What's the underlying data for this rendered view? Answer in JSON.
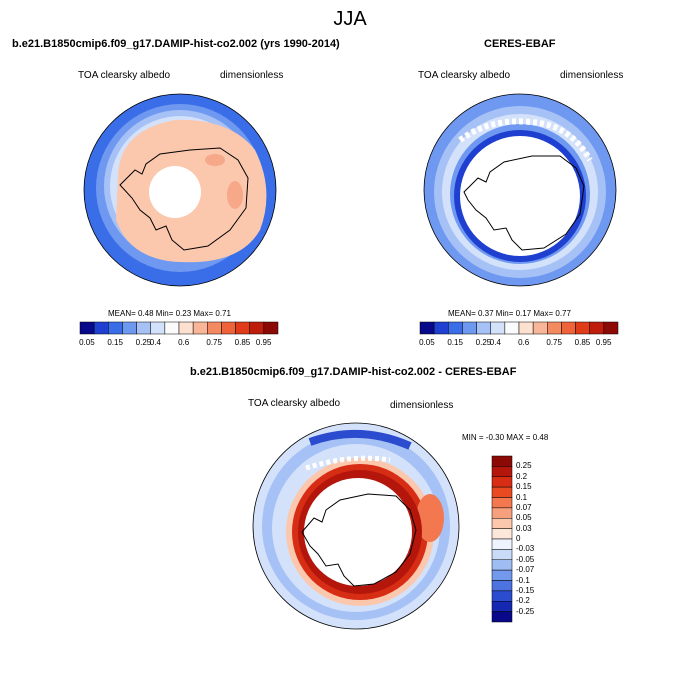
{
  "season": "JJA",
  "panels": [
    {
      "id": "model",
      "title": "b.e21.B1850cmip6.f09_g17.DAMIP-hist-co2.002 (yrs 1990-2014)",
      "variable": "TOA clearsky albedo",
      "units": "dimensionless",
      "stats": "MEAN=   0.48  Min=   0.23  Max=   0.71"
    },
    {
      "id": "obs",
      "title": "CERES-EBAF",
      "variable": "TOA clearsky albedo",
      "units": "dimensionless",
      "stats": "MEAN=   0.37  Min=   0.17  Max=   0.77"
    },
    {
      "id": "diff",
      "title": "b.e21.B1850cmip6.f09_g17.DAMIP-hist-co2.002 - CERES-EBAF",
      "variable": "TOA clearsky albedo",
      "units": "dimensionless",
      "stats": "MIN =  -0.30 MAX =   0.48"
    }
  ],
  "colorbar_abs": {
    "labels": [
      "0.05",
      "0.15",
      "0.25",
      "0.4",
      "0.6",
      "0.75",
      "0.85",
      "0.95"
    ],
    "colors": [
      "#08088a",
      "#1f3fd0",
      "#3a6ee8",
      "#6f98f0",
      "#a6c1f5",
      "#d3e2fa",
      "#fbfbfb",
      "#fde0cf",
      "#f9b597",
      "#f48a62",
      "#ef6338",
      "#e03c1a",
      "#bf1d0c",
      "#8c0a05"
    ]
  },
  "colorbar_diff": {
    "labels": [
      "0.25",
      "0.2",
      "0.15",
      "0.1",
      "0.07",
      "0.05",
      "0.03",
      "0",
      "-0.03",
      "-0.05",
      "-0.07",
      "-0.1",
      "-0.15",
      "-0.2",
      "-0.25"
    ],
    "colors": [
      "#8c0a05",
      "#b4160c",
      "#d62d14",
      "#ea4a22",
      "#f3784f",
      "#f7a07d",
      "#fbc7ad",
      "#fde7db",
      "#eef3fd",
      "#c9dbf8",
      "#9fbdf2",
      "#7399ec",
      "#4d73e0",
      "#2b4ccf",
      "#1528b2",
      "#08088a"
    ]
  },
  "map_colors": {
    "ocean_blue": "#3a6ee8",
    "mid_blue": "#6f98f0",
    "light_blue": "#a6c1f5",
    "pale_blue": "#d3e2fa",
    "peach": "#fbc7ad",
    "dark_peach": "#f6a888",
    "deep_red": "#b4160c",
    "red": "#d62d14"
  }
}
